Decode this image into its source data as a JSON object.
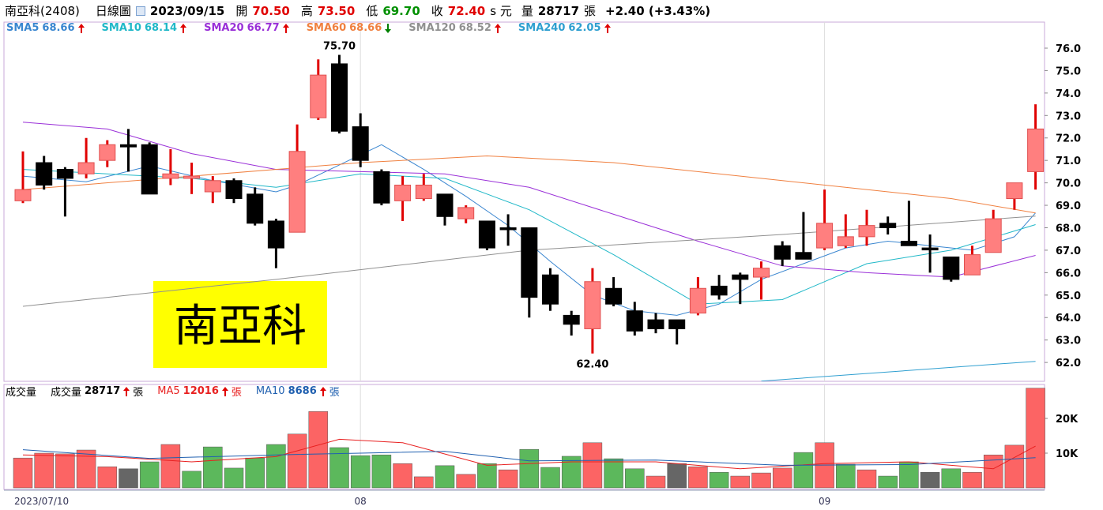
{
  "header": {
    "stock": "南亞科(2408)",
    "period": "日線圖",
    "date": "2023/09/15",
    "fields": [
      {
        "label": "開",
        "value": "70.50",
        "color": "#e00000"
      },
      {
        "label": "高",
        "value": "73.50",
        "color": "#e00000"
      },
      {
        "label": "低",
        "value": "69.70",
        "color": "#009000"
      },
      {
        "label": "收",
        "value": "72.40",
        "color": "#e00000"
      }
    ],
    "currency": "s 元",
    "volume_label": "量",
    "volume": "28717",
    "volume_unit": "張",
    "change": "+2.40 (+3.43%)"
  },
  "chart_data": [
    {
      "type": "candlestick",
      "categories": [
        "2023/07/10",
        null,
        null,
        null,
        null,
        null,
        null,
        null,
        null,
        null,
        null,
        null,
        null,
        null,
        null,
        null,
        "08",
        null,
        null,
        null,
        null,
        null,
        null,
        null,
        null,
        null,
        null,
        null,
        null,
        null,
        null,
        null,
        null,
        null,
        null,
        null,
        null,
        null,
        "09",
        null,
        null,
        null,
        null,
        null,
        null,
        null,
        null,
        null,
        null
      ],
      "open": [
        69.2,
        70.9,
        70.6,
        70.4,
        71.0,
        71.7,
        71.7,
        70.2,
        70.2,
        69.6,
        70.1,
        69.5,
        68.3,
        67.8,
        72.9,
        75.3,
        72.5,
        70.5,
        69.2,
        69.3,
        69.5,
        68.4,
        68.3,
        68.0,
        68.0,
        65.9,
        64.1,
        63.5,
        65.3,
        64.3,
        63.9,
        63.9,
        64.2,
        65.4,
        65.9,
        65.8,
        67.2,
        66.9,
        67.1,
        67.2,
        67.6,
        68.2,
        67.4,
        67.1,
        66.7,
        65.9,
        66.9,
        69.3,
        70.5
      ],
      "high": [
        71.4,
        71.2,
        70.7,
        72.0,
        71.9,
        72.4,
        71.8,
        71.5,
        70.9,
        70.3,
        70.2,
        69.8,
        68.4,
        72.6,
        75.5,
        75.7,
        73.1,
        70.6,
        70.3,
        70.4,
        69.5,
        69.0,
        68.3,
        68.6,
        68.0,
        66.2,
        64.3,
        66.2,
        65.8,
        64.7,
        64.2,
        63.9,
        65.8,
        65.9,
        66.0,
        66.5,
        67.4,
        68.7,
        69.7,
        68.6,
        68.8,
        68.5,
        69.2,
        67.7,
        66.7,
        67.2,
        68.8,
        70.0,
        73.5
      ],
      "low": [
        69.1,
        69.7,
        68.5,
        70.2,
        70.7,
        70.5,
        69.5,
        69.9,
        69.5,
        69.1,
        69.1,
        68.1,
        66.2,
        67.8,
        72.8,
        72.2,
        70.7,
        69.0,
        68.3,
        69.2,
        68.1,
        68.2,
        67.0,
        67.2,
        64.0,
        64.3,
        63.2,
        62.4,
        64.5,
        63.2,
        63.3,
        62.8,
        64.1,
        64.8,
        64.6,
        64.8,
        66.3,
        66.6,
        67.0,
        67.1,
        67.2,
        67.7,
        67.2,
        66.0,
        65.6,
        65.9,
        66.9,
        68.8,
        69.7
      ],
      "close": [
        69.7,
        69.9,
        70.2,
        70.9,
        71.7,
        71.6,
        69.5,
        70.4,
        70.3,
        70.1,
        69.3,
        68.2,
        67.1,
        71.4,
        74.8,
        72.3,
        71.0,
        69.1,
        69.9,
        69.9,
        68.5,
        68.9,
        67.1,
        68.0,
        64.9,
        64.6,
        63.7,
        65.6,
        64.6,
        63.4,
        63.5,
        63.5,
        65.3,
        65.0,
        65.7,
        66.2,
        66.6,
        66.6,
        68.2,
        67.6,
        68.1,
        68.0,
        67.2,
        67.1,
        65.7,
        66.8,
        68.4,
        70.0,
        72.4
      ],
      "up_color": "#ff7f7f",
      "up_line": "#e00000",
      "down_color": "#000000",
      "ylim": [
        61.16,
        77.16
      ],
      "yticks": [
        {
          "value": 62,
          "label": "62.0"
        },
        {
          "value": 63,
          "label": "63.0"
        },
        {
          "value": 64,
          "label": "64.0"
        },
        {
          "value": 65,
          "label": "65.0"
        },
        {
          "value": 66,
          "label": "66.0"
        },
        {
          "value": 67,
          "label": "67.0"
        },
        {
          "value": 68,
          "label": "68.0"
        },
        {
          "value": 69,
          "label": "69.0"
        },
        {
          "value": 70,
          "label": "70.0"
        },
        {
          "value": 71,
          "label": "71.0"
        },
        {
          "value": 72,
          "label": "72.0"
        },
        {
          "value": 73,
          "label": "73.0"
        },
        {
          "value": 74,
          "label": "74.0"
        },
        {
          "value": 75,
          "label": "75.0"
        },
        {
          "value": 76,
          "label": "76.0"
        }
      ],
      "series": [
        {
          "name": "SMA5",
          "value_label": "68.66",
          "trend": "up",
          "color": "#3a86d0",
          "x": [
            0,
            3,
            6,
            9,
            12,
            13,
            15,
            17,
            19,
            21,
            23,
            25,
            27,
            29,
            31,
            33,
            35,
            37,
            39,
            41,
            43,
            45,
            47,
            48
          ],
          "values": [
            70.3,
            70.05,
            70.75,
            70.1,
            69.6,
            69.9,
            70.8,
            71.7,
            70.6,
            69.4,
            68.1,
            66.5,
            65.0,
            64.3,
            64.1,
            64.6,
            65.7,
            66.4,
            67.1,
            67.4,
            67.2,
            67.0,
            67.6,
            68.66
          ]
        },
        {
          "name": "SMA10",
          "value_label": "68.14",
          "trend": "up",
          "color": "#20b8c8",
          "x": [
            0,
            4,
            8,
            12,
            16,
            20,
            24,
            28,
            32,
            36,
            40,
            44,
            48
          ],
          "values": [
            70.6,
            70.4,
            70.2,
            69.8,
            70.4,
            70.2,
            68.8,
            66.8,
            64.6,
            64.8,
            66.4,
            67.0,
            68.14
          ]
        },
        {
          "name": "SMA20",
          "value_label": "66.77",
          "trend": "up",
          "color": "#9a30d8",
          "x": [
            0,
            4,
            8,
            12,
            16,
            20,
            24,
            28,
            32,
            36,
            40,
            44,
            48
          ],
          "values": [
            72.7,
            72.4,
            71.3,
            70.6,
            70.5,
            70.4,
            69.8,
            68.6,
            67.4,
            66.3,
            66.0,
            65.8,
            66.77
          ]
        },
        {
          "name": "SMA60",
          "value_label": "68.66",
          "trend": "down",
          "color": "#f08040",
          "x": [
            0,
            8,
            16,
            22,
            28,
            36,
            44,
            48
          ],
          "values": [
            69.7,
            70.3,
            70.9,
            71.2,
            70.9,
            70.1,
            69.3,
            68.66
          ]
        },
        {
          "name": "SMA120",
          "value_label": "68.52",
          "trend": "up",
          "color": "#909090",
          "x": [
            0,
            12,
            24,
            36,
            48
          ],
          "values": [
            64.5,
            65.7,
            67.0,
            67.7,
            68.52
          ]
        },
        {
          "name": "SMA240",
          "value_label": "62.05",
          "trend": "up",
          "color": "#2f9fd0",
          "x": [
            35,
            48
          ],
          "values": [
            61.17,
            62.05
          ]
        }
      ],
      "annotations": [
        {
          "text": "75.70",
          "index": 15,
          "value": 75.7,
          "position": "above"
        },
        {
          "text": "62.40",
          "index": 27,
          "value": 62.4,
          "position": "below"
        }
      ],
      "watermark": {
        "text": "南亞科",
        "background": "#ffff00"
      }
    },
    {
      "type": "bar",
      "title": "成交量",
      "values": [
        8600,
        10000,
        9800,
        10900,
        6100,
        5500,
        7500,
        12500,
        4800,
        11800,
        5700,
        8600,
        12500,
        15500,
        22000,
        11600,
        9300,
        9500,
        7000,
        3200,
        6400,
        3900,
        7000,
        5200,
        11100,
        5900,
        9100,
        13000,
        8400,
        5500,
        3400,
        7000,
        6100,
        4500,
        3400,
        4300,
        5700,
        10200,
        13000,
        6800,
        5200,
        3400,
        7500,
        4500,
        5500,
        4500,
        9500,
        12300,
        28717
      ],
      "colors": [
        "r",
        "r",
        "r",
        "r",
        "r",
        "k",
        "g",
        "r",
        "g",
        "g",
        "g",
        "g",
        "g",
        "r",
        "r",
        "g",
        "g",
        "g",
        "r",
        "r",
        "g",
        "r",
        "g",
        "r",
        "g",
        "g",
        "g",
        "r",
        "g",
        "g",
        "r",
        "k",
        "r",
        "g",
        "r",
        "r",
        "r",
        "g",
        "r",
        "g",
        "r",
        "g",
        "g",
        "k",
        "g",
        "r",
        "r",
        "r",
        "r"
      ],
      "palette": {
        "r": "#fc6464",
        "g": "#5cb85c",
        "k": "#666666"
      },
      "ylim": [
        0,
        29773
      ],
      "yticks": [
        {
          "value": 10000,
          "label": "10K"
        },
        {
          "value": 20000,
          "label": "20K"
        }
      ],
      "unit": "張",
      "legend": {
        "name": "成交量",
        "value": "28717",
        "trend": "up"
      },
      "series": [
        {
          "name": "MA5",
          "value_label": "12016",
          "trend": "up",
          "color": "#e82020",
          "x": [
            0,
            4,
            8,
            12,
            15,
            18,
            22,
            26,
            30,
            34,
            38,
            42,
            46,
            48
          ],
          "values": [
            9500,
            9000,
            7500,
            9000,
            14000,
            13000,
            6500,
            7500,
            7500,
            5500,
            7000,
            7500,
            5500,
            12016
          ]
        },
        {
          "name": "MA10",
          "value_label": "8686",
          "trend": "up",
          "color": "#2060b0",
          "x": [
            0,
            6,
            12,
            16,
            20,
            24,
            30,
            36,
            42,
            48
          ],
          "values": [
            11000,
            8500,
            9500,
            10000,
            10500,
            7800,
            8000,
            6500,
            6700,
            8686
          ]
        }
      ]
    }
  ]
}
